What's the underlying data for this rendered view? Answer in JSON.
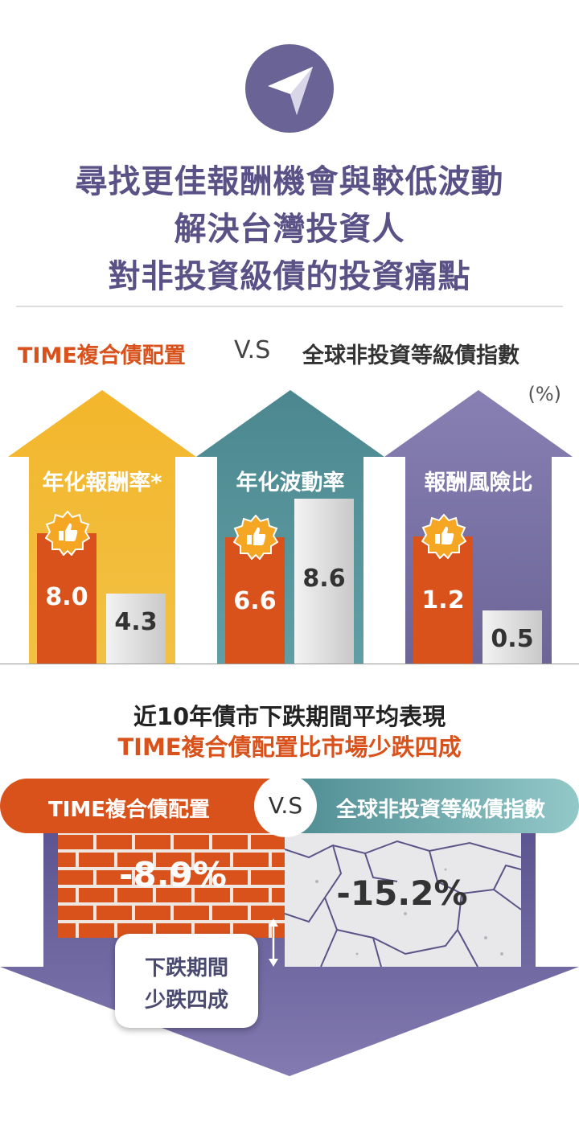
{
  "header": {
    "icon": "send-arrow-icon",
    "title_lines": [
      "尋找更佳報酬機會與較低波動",
      "解決台灣投資人",
      "對非投資級債的投資痛點"
    ]
  },
  "legend": {
    "left": "TIME複合債配置",
    "vs": "V.S",
    "right": "全球非投資等級債指數",
    "unit": "(%)"
  },
  "colors": {
    "title": "#5a5287",
    "time_series": "#d9521c",
    "index_series": "#d8d8d8",
    "panel1": "#f2b32a",
    "panel2": "#4e8f96",
    "panel3": "#7b74a6"
  },
  "chart_data": [
    {
      "type": "bar",
      "categories": [
        "年化報酬率*",
        "年化波動率",
        "報酬風險比"
      ],
      "series": [
        {
          "name": "TIME複合債配置",
          "values": [
            8.0,
            6.6,
            1.2
          ],
          "labels": [
            "8.0",
            "6.6",
            "1.2"
          ]
        },
        {
          "name": "全球非投資等級債指數",
          "values": [
            4.3,
            8.6,
            0.5
          ],
          "labels": [
            "4.3",
            "8.6",
            "0.5"
          ]
        }
      ],
      "badge_icon": "thumbs-up-icon"
    },
    {
      "type": "bar",
      "title": "近10年債市下跌期間平均表現",
      "subtitle": "TIME複合債配置比市場少跌四成",
      "categories": [
        "TIME複合債配置",
        "全球非投資等級債指數"
      ],
      "values": [
        -8.9,
        -15.2
      ],
      "labels": [
        "-8.9%",
        "-15.2%"
      ]
    }
  ],
  "bottom": {
    "vs": "V.S",
    "left_label": "TIME複合債配置",
    "right_label": "全球非投資等級債指數",
    "note_lines": [
      "下跌期間",
      "少跌四成"
    ]
  }
}
